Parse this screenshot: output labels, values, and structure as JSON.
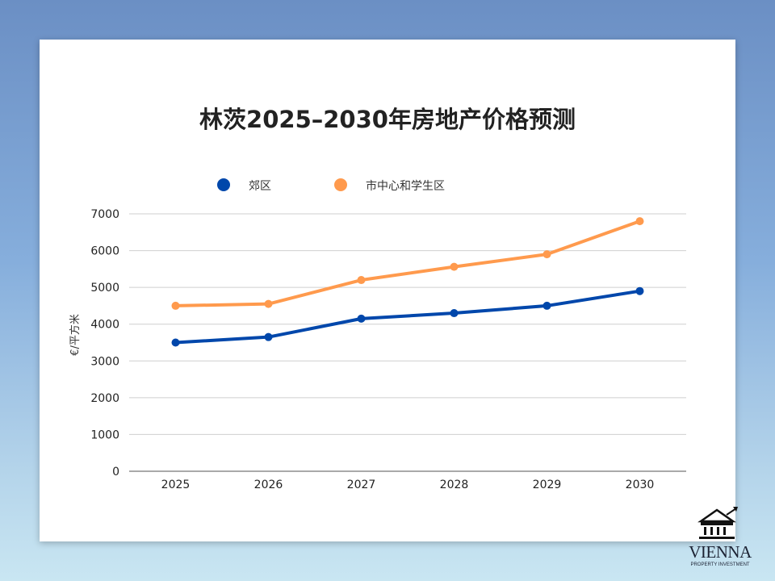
{
  "chart_data": {
    "type": "line",
    "title": "林茨2025–2030年房地产价格预测",
    "xlabel": "",
    "ylabel": "€/平方米",
    "categories": [
      "2025",
      "2026",
      "2027",
      "2028",
      "2029",
      "2030"
    ],
    "series": [
      {
        "name": "郊区",
        "color": "#0047ab",
        "values": [
          3500,
          3650,
          4150,
          4300,
          4500,
          4900
        ]
      },
      {
        "name": "市中心和学生区",
        "color": "#ff9a4d",
        "values": [
          4500,
          4550,
          5200,
          5560,
          5900,
          6800
        ]
      }
    ],
    "ylim": [
      0,
      7000
    ],
    "yticks": [
      0,
      1000,
      2000,
      3000,
      4000,
      5000,
      6000,
      7000
    ],
    "grid": true,
    "legend": "top"
  },
  "logo": {
    "name": "VIENNA",
    "tagline": "PROPERTY INVESTMENT"
  }
}
